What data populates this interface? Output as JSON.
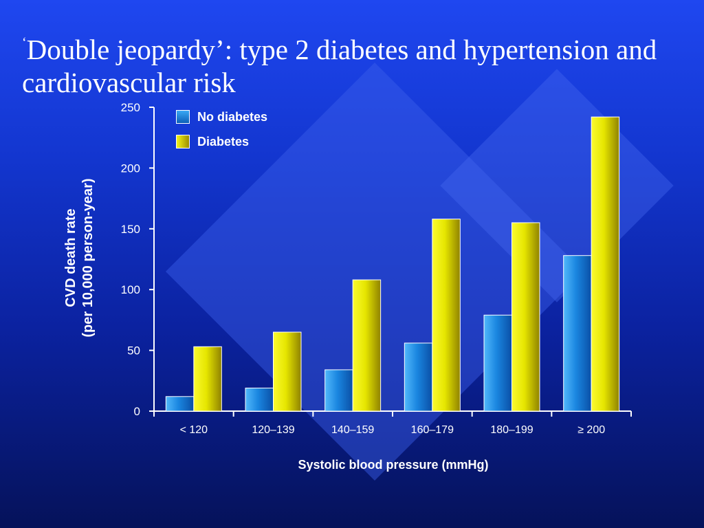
{
  "slide": {
    "title_quote": "‘",
    "title": "Double jeopardy’: type 2 diabetes and hypertension and cardiovascular risk"
  },
  "chart_data": {
    "type": "bar",
    "categories": [
      "< 120",
      "120–139",
      "140–159",
      "160–179",
      "180–199",
      "≥ 200"
    ],
    "series": [
      {
        "name": "No diabetes",
        "values": [
          12,
          19,
          34,
          56,
          79,
          128
        ],
        "color": "#1a86e0"
      },
      {
        "name": "Diabetes",
        "values": [
          53,
          65,
          108,
          158,
          155,
          242
        ],
        "color": "#e6e600"
      }
    ],
    "title": "",
    "xlabel": "Systolic blood pressure (mmHg)",
    "ylabel_line1": "CVD death rate",
    "ylabel_line2": "(per 10,000 person-year)",
    "ylim": [
      0,
      250
    ],
    "yticks": [
      0,
      50,
      100,
      150,
      200,
      250
    ],
    "grid": false,
    "legend_position": "top-left"
  }
}
